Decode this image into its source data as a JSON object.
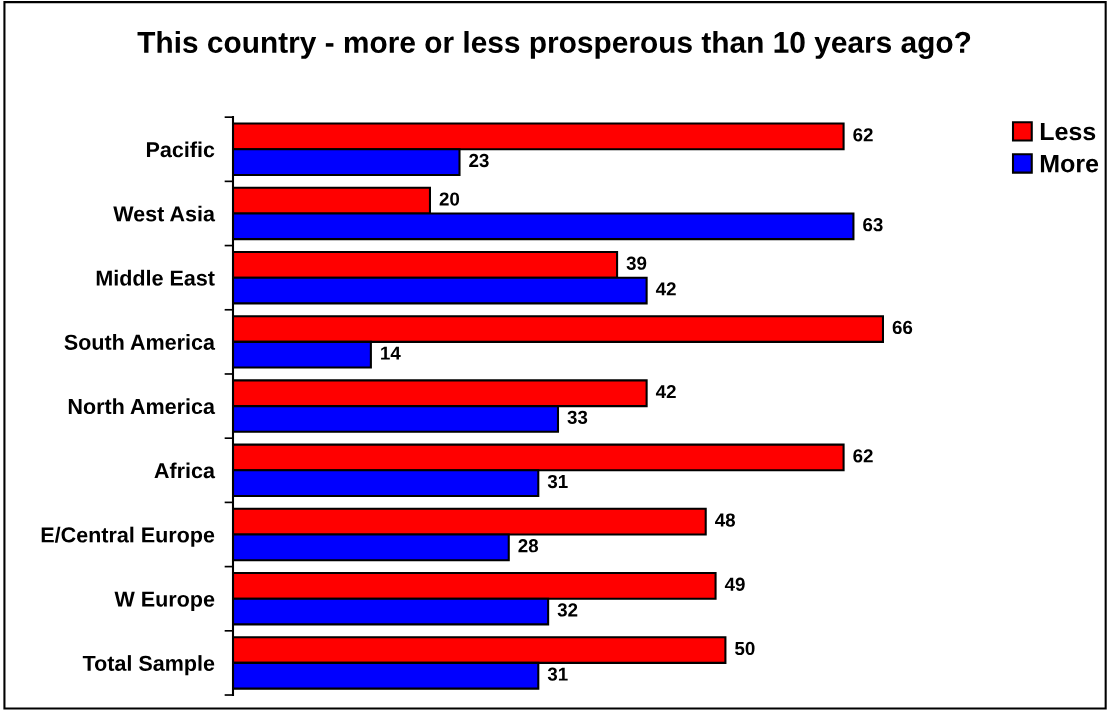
{
  "chart_data": {
    "type": "bar",
    "orientation": "horizontal",
    "title": "This country - more or less prosperous than 10 years ago?",
    "categories": [
      "Pacific",
      "West Asia",
      "Middle East",
      "South America",
      "North America",
      "Africa",
      "E/Central Europe",
      "W Europe",
      "Total Sample"
    ],
    "series": [
      {
        "name": "Less",
        "color": "#ff0000",
        "values": [
          62,
          20,
          39,
          66,
          42,
          62,
          48,
          49,
          50
        ]
      },
      {
        "name": "More",
        "color": "#0000ff",
        "values": [
          23,
          63,
          42,
          14,
          33,
          31,
          28,
          32,
          31
        ]
      }
    ],
    "data_labels": true,
    "legend": "top right",
    "tick_labels": "y"
  }
}
